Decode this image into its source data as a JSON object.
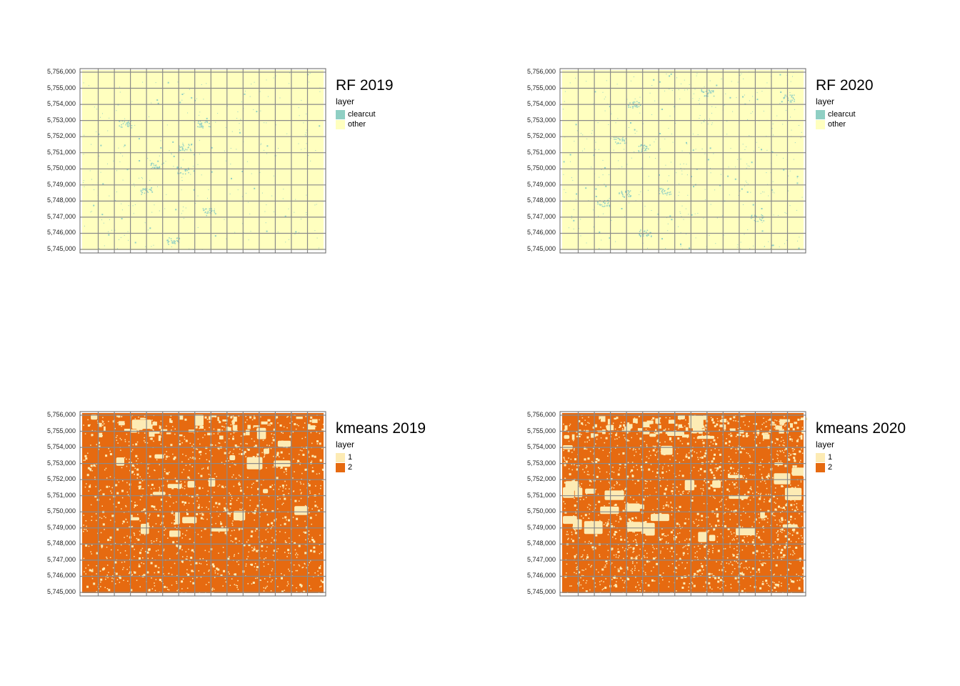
{
  "y_ticks": [
    "5,756,000",
    "5,755,000",
    "5,754,000",
    "5,753,000",
    "5,752,000",
    "5,751,000",
    "5,750,000",
    "5,749,000",
    "5,748,000",
    "5,747,000",
    "5,746,000",
    "5,745,000"
  ],
  "grid": {
    "columns": 15,
    "rows": 11
  },
  "panels": [
    {
      "id": "rf2019",
      "title": "RF 2019",
      "legend_title": "layer",
      "type": "sparse",
      "background": "#FFFFBF",
      "features": "#8FCFC4",
      "density": 0.12,
      "legend": [
        {
          "label": "clearcut",
          "color": "#8FCFC4"
        },
        {
          "label": "other",
          "color": "#FFFFBF"
        }
      ]
    },
    {
      "id": "rf2020",
      "title": "RF 2020",
      "legend_title": "layer",
      "type": "sparse",
      "background": "#FFFFBF",
      "features": "#8FCFC4",
      "density": 0.25,
      "legend": [
        {
          "label": "clearcut",
          "color": "#8FCFC4"
        },
        {
          "label": "other",
          "color": "#FFFFBF"
        }
      ]
    },
    {
      "id": "kmeans2019",
      "title": "kmeans 2019",
      "legend_title": "layer",
      "type": "dense",
      "background": "#E66A10",
      "features": "#FDEBB4",
      "density": 0.5,
      "legend": [
        {
          "label": "1",
          "color": "#FDEBB4"
        },
        {
          "label": "2",
          "color": "#E66A10"
        }
      ]
    },
    {
      "id": "kmeans2020",
      "title": "kmeans 2020",
      "legend_title": "layer",
      "type": "dense",
      "background": "#E66A10",
      "features": "#FDEBB4",
      "density": 0.8,
      "legend": [
        {
          "label": "1",
          "color": "#FDEBB4"
        },
        {
          "label": "2",
          "color": "#E66A10"
        }
      ]
    }
  ]
}
